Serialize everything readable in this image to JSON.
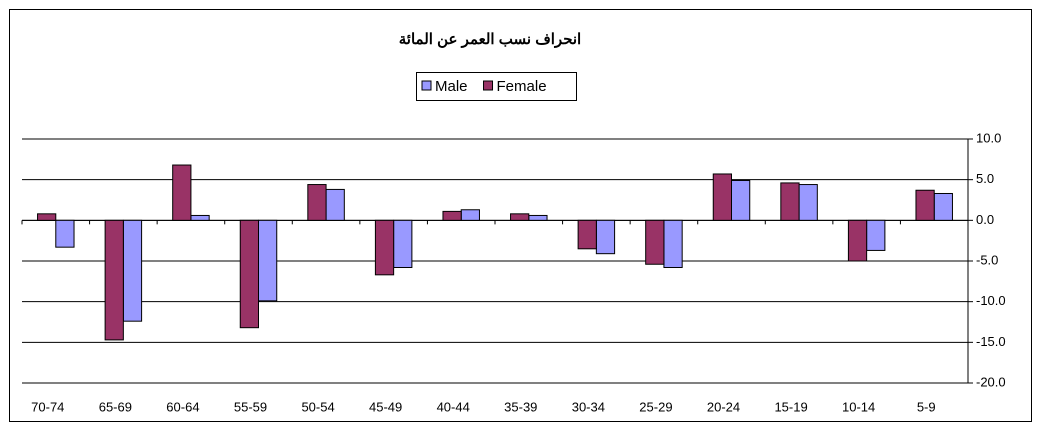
{
  "chart_data": {
    "type": "bar",
    "title": "انحراف نسب العمر عن المائة",
    "categories": [
      "70-74",
      "65-69",
      "60-64",
      "55-59",
      "50-54",
      "45-49",
      "40-44",
      "35-39",
      "30-34",
      "25-29",
      "20-24",
      "15-19",
      "10-14",
      "5-9"
    ],
    "series": [
      {
        "name": "Male",
        "color": "#9999ff",
        "values": [
          -3.3,
          -12.4,
          0.6,
          -9.9,
          3.8,
          -5.8,
          1.3,
          0.6,
          -4.1,
          -5.8,
          4.9,
          4.4,
          -3.7,
          3.3
        ]
      },
      {
        "name": "Female",
        "color": "#993366",
        "values": [
          0.8,
          -14.7,
          6.8,
          -13.2,
          4.4,
          -6.7,
          1.1,
          0.8,
          -3.5,
          -5.4,
          5.7,
          4.6,
          -5.0,
          3.7
        ]
      }
    ],
    "ylim": [
      -20,
      10
    ],
    "yticks": [
      {
        "value": -20,
        "label": "-20.0"
      },
      {
        "value": -15,
        "label": "-15.0"
      },
      {
        "value": -10,
        "label": "-10.0"
      },
      {
        "value": -5,
        "label": "-5.0"
      },
      {
        "value": 0,
        "label": "0.0"
      },
      {
        "value": 5,
        "label": "5.0"
      },
      {
        "value": 10,
        "label": "10.0"
      }
    ],
    "grid": true,
    "y_axis_side": "right",
    "legend_position": "top"
  }
}
